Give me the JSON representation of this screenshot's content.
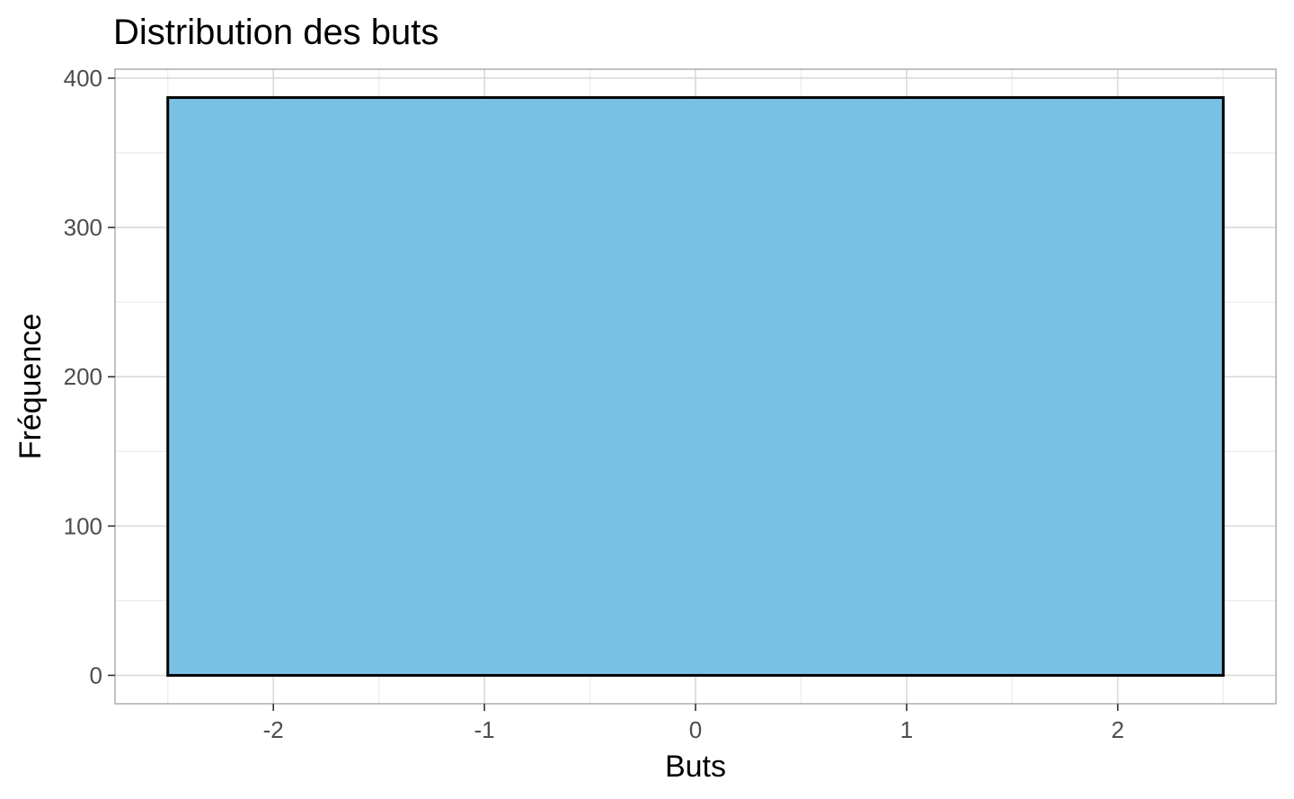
{
  "chart_data": {
    "type": "bar",
    "title": "Distribution des buts",
    "xlabel": "Buts",
    "ylabel": "Fréquence",
    "xlim": [
      -2.75,
      2.75
    ],
    "ylim": [
      -19,
      406
    ],
    "x_ticks": [
      -2,
      -1,
      0,
      1,
      2
    ],
    "x_tick_labels": [
      "-2",
      "-1",
      "0",
      "1",
      "2"
    ],
    "y_ticks": [
      0,
      100,
      200,
      300,
      400
    ],
    "y_tick_labels": [
      "0",
      "100",
      "200",
      "300",
      "400"
    ],
    "bins": [
      {
        "x_start": -2.5,
        "x_end": 2.5,
        "value": 387
      }
    ],
    "grid": true,
    "legend": "none",
    "colors": {
      "bar_fill": "#7AC2E5",
      "bar_outline": "#000000",
      "panel_border": "#b3b3b3",
      "grid_major": "#d9d9d9",
      "grid_minor": "#ececec",
      "tick_text": "#4d4d4d"
    }
  }
}
